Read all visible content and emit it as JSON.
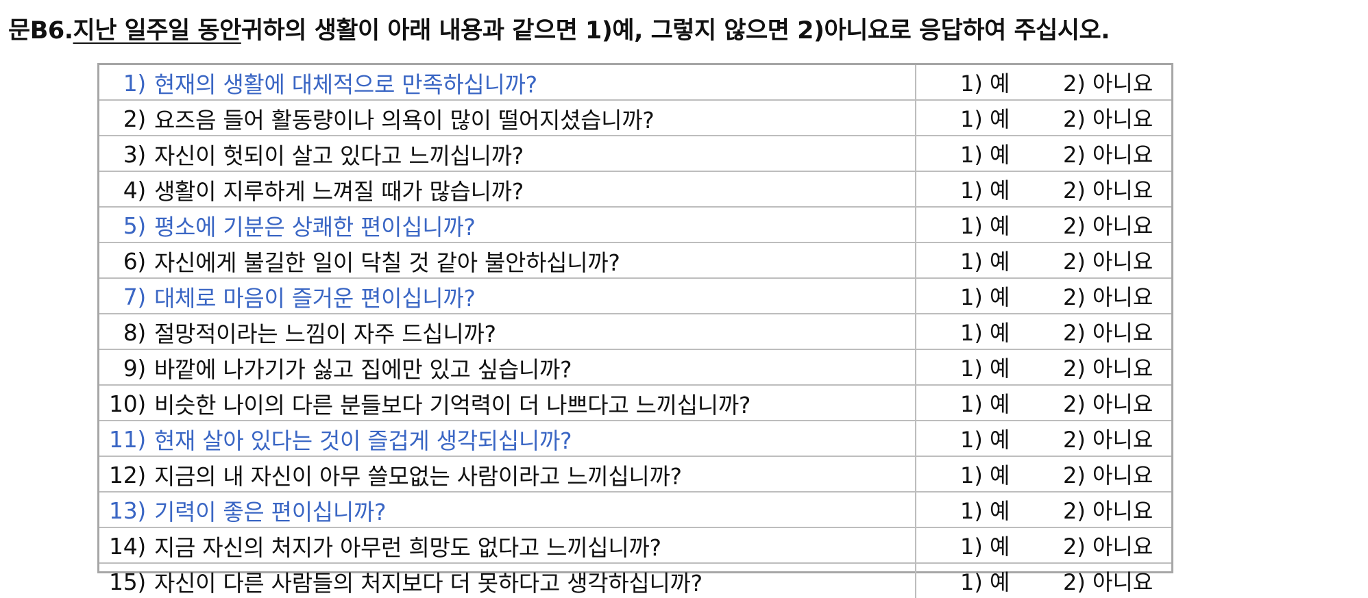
{
  "header": {
    "prefix": "문B6. ",
    "underlined": "지난 일주일 동안",
    "suffix": " 귀하의 생활이 아래 내용과 같으면 1)예, 그렇지 않으면 2)아니요로 응답하여 주십시오."
  },
  "options": {
    "yes": "1) 예",
    "no": "2) 아니요"
  },
  "colors": {
    "highlight": "#3a66c4",
    "text": "#111111",
    "border": "#a6a6a6"
  },
  "questions": [
    {
      "num": "1)",
      "text": "현재의 생활에 대체적으로 만족하십니까?",
      "highlight": true
    },
    {
      "num": "2)",
      "text": "요즈음 들어 활동량이나 의욕이 많이 떨어지셨습니까?",
      "highlight": false
    },
    {
      "num": "3)",
      "text": "자신이 헛되이 살고 있다고 느끼십니까?",
      "highlight": false
    },
    {
      "num": "4)",
      "text": "생활이 지루하게 느껴질 때가 많습니까?",
      "highlight": false
    },
    {
      "num": "5)",
      "text": "평소에 기분은 상쾌한 편이십니까?",
      "highlight": true
    },
    {
      "num": "6)",
      "text": "자신에게 불길한 일이 닥칠 것 같아 불안하십니까?",
      "highlight": false
    },
    {
      "num": "7)",
      "text": "대체로 마음이 즐거운 편이십니까?",
      "highlight": true
    },
    {
      "num": "8)",
      "text": "절망적이라는 느낌이 자주 드십니까?",
      "highlight": false
    },
    {
      "num": "9)",
      "text": "바깥에 나가기가 싫고 집에만 있고 싶습니까?",
      "highlight": false
    },
    {
      "num": "10)",
      "text": "비슷한 나이의 다른 분들보다 기억력이 더 나쁘다고 느끼십니까?",
      "highlight": false
    },
    {
      "num": "11)",
      "text": "현재 살아 있다는 것이 즐겁게 생각되십니까?",
      "highlight": true
    },
    {
      "num": "12)",
      "text": "지금의 내 자신이 아무 쓸모없는 사람이라고 느끼십니까?",
      "highlight": false
    },
    {
      "num": "13)",
      "text": "기력이 좋은 편이십니까?",
      "highlight": true
    },
    {
      "num": "14)",
      "text": "지금 자신의 처지가 아무런 희망도 없다고 느끼십니까?",
      "highlight": false
    },
    {
      "num": "15)",
      "text": "자신이 다른 사람들의 처지보다 더 못하다고 생각하십니까?",
      "highlight": false
    }
  ]
}
